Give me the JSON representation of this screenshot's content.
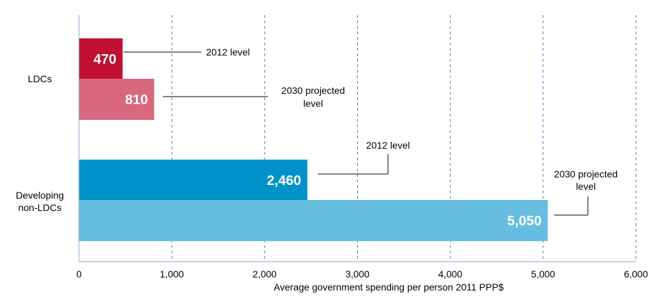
{
  "chart_data": {
    "type": "bar",
    "orientation": "horizontal",
    "categories": [
      "LDCs",
      "Developing non-LDCs"
    ],
    "series": [
      {
        "name": "2012 level",
        "values": [
          470,
          2460
        ],
        "labels": [
          "470",
          "2,460"
        ],
        "colors": [
          "#c0102f",
          "#0093c9"
        ]
      },
      {
        "name": "2030 projected level",
        "values": [
          810,
          5050
        ],
        "labels": [
          "810",
          "5,050"
        ],
        "colors": [
          "#d9687f",
          "#67bde0"
        ]
      }
    ],
    "annotations": [
      {
        "category": 0,
        "series": 0,
        "text": [
          "2012 level"
        ]
      },
      {
        "category": 0,
        "series": 1,
        "text": [
          "2030 projected",
          "level"
        ]
      },
      {
        "category": 1,
        "series": 0,
        "text": [
          "2012 level"
        ]
      },
      {
        "category": 1,
        "series": 1,
        "text": [
          "2030 projected",
          "level"
        ]
      }
    ],
    "category_labels": [
      [
        "LDCs"
      ],
      [
        "Developing",
        "non-LDCs"
      ]
    ],
    "xticks": [
      0,
      1000,
      2000,
      3000,
      4000,
      5000,
      6000
    ],
    "xtick_labels": [
      "0",
      "1,000",
      "2,000",
      "3,000",
      "4,000",
      "5,000",
      "6,000"
    ],
    "xlim": [
      0,
      6000
    ],
    "xlabel": "Average government spending per person 2011 PPP$",
    "ylabel": "",
    "title": "",
    "grid": "vertical dashed",
    "grid_color": "#4a7fc0",
    "axis_color": "#8aa8cc"
  }
}
